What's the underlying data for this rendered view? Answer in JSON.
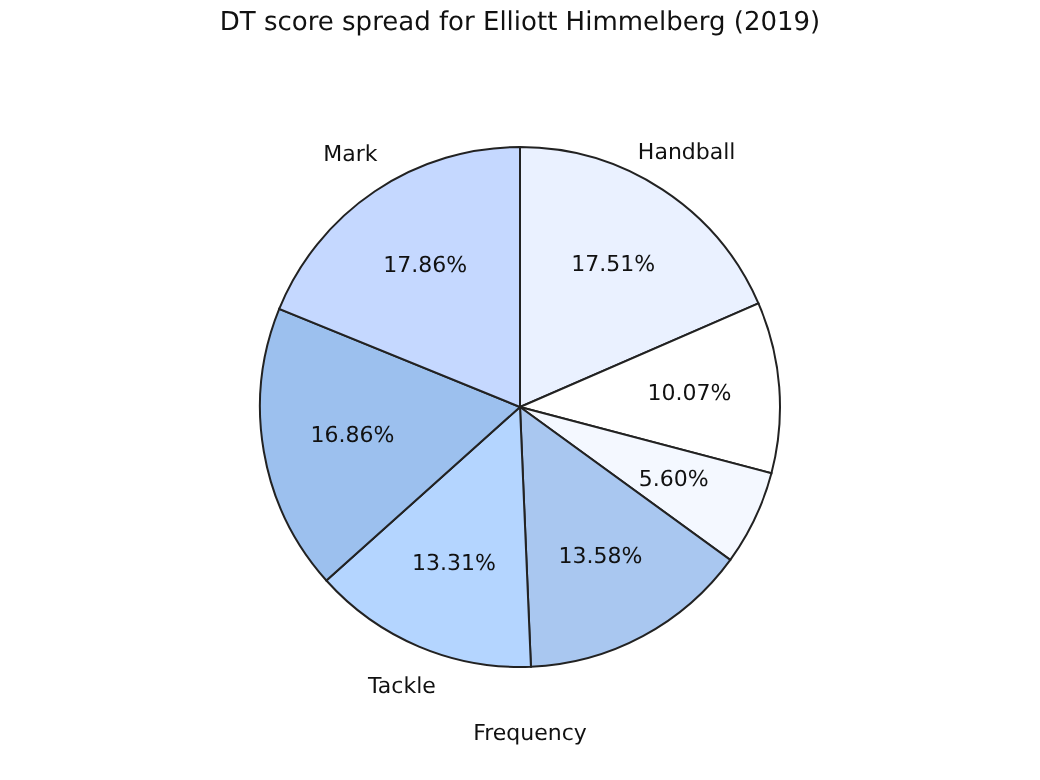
{
  "chart_data": {
    "type": "pie",
    "title": "DT score spread for Elliott Himmelberg (2019)",
    "xlabel": "Frequency",
    "categories": [
      "Handball",
      null,
      null,
      null,
      "Tackle",
      null,
      "Mark"
    ],
    "values": [
      17.51,
      10.07,
      5.6,
      13.58,
      13.31,
      16.86,
      17.86
    ],
    "value_labels": [
      "17.51%",
      "10.07%",
      "5.60%",
      "13.58%",
      "13.31%",
      "16.86%",
      "17.86%"
    ],
    "colors": [
      "#eaf1ff",
      "#ffffff",
      "#f4f8ff",
      "#a9c7f0",
      "#b4d5ff",
      "#9cc0ee",
      "#c5d8ff"
    ],
    "legend": false
  }
}
